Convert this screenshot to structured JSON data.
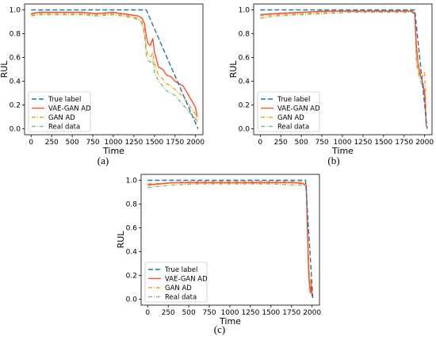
{
  "chart_data": [
    {
      "type": "line",
      "caption": "(a)",
      "xlabel": "Time",
      "ylabel": "RUL",
      "xlim": [
        -80,
        2090
      ],
      "ylim": [
        -0.05,
        1.05
      ],
      "xticks": [
        0,
        250,
        500,
        750,
        1000,
        1250,
        1500,
        1750,
        2000
      ],
      "yticks": [
        0.0,
        0.2,
        0.4,
        0.6,
        0.8,
        1.0
      ],
      "legend_position": "lower-left",
      "series": [
        {
          "name": "True label",
          "color": "#1f77b4",
          "dash": "6,3",
          "x": [
            0,
            1400,
            2030
          ],
          "y": [
            1.0,
            1.0,
            0.0
          ]
        },
        {
          "name": "VAE-GAN AD",
          "color": "#ff4d2e",
          "dash": "",
          "x": [
            0,
            100,
            200,
            400,
            600,
            800,
            1000,
            1200,
            1300,
            1350,
            1380,
            1400,
            1420,
            1450,
            1480,
            1500,
            1550,
            1600,
            1650,
            1700,
            1750,
            1800,
            1850,
            1900,
            1950,
            2000,
            2020
          ],
          "y": [
            0.97,
            0.98,
            0.98,
            0.98,
            0.98,
            0.97,
            0.98,
            0.96,
            0.95,
            0.93,
            0.88,
            0.78,
            0.72,
            0.7,
            0.76,
            0.65,
            0.52,
            0.5,
            0.45,
            0.44,
            0.4,
            0.38,
            0.36,
            0.3,
            0.24,
            0.18,
            0.1
          ]
        },
        {
          "name": "GAN AD",
          "color": "#ff9f1c",
          "dash": "5,2,1,2",
          "x": [
            0,
            100,
            200,
            400,
            600,
            800,
            1000,
            1200,
            1300,
            1350,
            1380,
            1400,
            1420,
            1450,
            1480,
            1500,
            1550,
            1600,
            1650,
            1700,
            1750,
            1800,
            1850,
            1900,
            1950,
            2000,
            2020
          ],
          "y": [
            0.96,
            0.97,
            0.97,
            0.97,
            0.97,
            0.96,
            0.97,
            0.95,
            0.93,
            0.9,
            0.82,
            0.68,
            0.62,
            0.6,
            0.64,
            0.55,
            0.45,
            0.42,
            0.38,
            0.36,
            0.33,
            0.3,
            0.27,
            0.22,
            0.17,
            0.12,
            0.06
          ]
        },
        {
          "name": "Real data",
          "color": "#7fbf7f",
          "dash": "5,2,1,2",
          "x": [
            0,
            100,
            200,
            400,
            600,
            800,
            1000,
            1200,
            1300,
            1350,
            1380,
            1400,
            1420,
            1450,
            1480,
            1500,
            1550,
            1600,
            1650,
            1700,
            1750,
            1800,
            1850,
            1900,
            1950,
            2000,
            2020
          ],
          "y": [
            0.95,
            0.96,
            0.96,
            0.96,
            0.96,
            0.95,
            0.96,
            0.94,
            0.92,
            0.88,
            0.78,
            0.62,
            0.58,
            0.56,
            0.58,
            0.48,
            0.4,
            0.36,
            0.32,
            0.3,
            0.28,
            0.24,
            0.2,
            0.16,
            0.12,
            0.08,
            0.04
          ]
        }
      ]
    },
    {
      "type": "line",
      "caption": "(b)",
      "xlabel": "Time",
      "ylabel": "RUL",
      "xlim": [
        -80,
        2090
      ],
      "ylim": [
        -0.05,
        1.05
      ],
      "xticks": [
        0,
        250,
        500,
        750,
        1000,
        1250,
        1500,
        1750,
        2000
      ],
      "yticks": [
        0.0,
        0.2,
        0.4,
        0.6,
        0.8,
        1.0
      ],
      "legend_position": "lower-left",
      "series": [
        {
          "name": "True label",
          "color": "#1f77b4",
          "dash": "6,3",
          "x": [
            0,
            1880,
            2030
          ],
          "y": [
            1.0,
            1.0,
            0.0
          ]
        },
        {
          "name": "VAE-GAN AD",
          "color": "#ff4d2e",
          "dash": "",
          "x": [
            0,
            200,
            500,
            800,
            1100,
            1400,
            1700,
            1850,
            1880,
            1900,
            1920,
            1950,
            1980,
            2000,
            2020
          ],
          "y": [
            0.96,
            0.97,
            0.98,
            0.99,
            0.99,
            0.99,
            0.99,
            0.99,
            0.97,
            0.7,
            0.55,
            0.45,
            0.38,
            0.3,
            0.02
          ]
        },
        {
          "name": "GAN AD",
          "color": "#ff9f1c",
          "dash": "5,2,1,2",
          "x": [
            0,
            200,
            500,
            800,
            1100,
            1400,
            1700,
            1850,
            1880,
            1900,
            1920,
            1950,
            1980,
            2000,
            2020
          ],
          "y": [
            0.95,
            0.96,
            0.97,
            0.98,
            0.99,
            0.99,
            0.99,
            0.99,
            0.96,
            0.6,
            0.5,
            0.42,
            0.45,
            0.48,
            0.1
          ]
        },
        {
          "name": "Real data",
          "color": "#7fbf7f",
          "dash": "5,2,1,2",
          "x": [
            0,
            200,
            500,
            800,
            1100,
            1400,
            1700,
            1850,
            1880,
            1900,
            1920,
            1950,
            1980,
            2000,
            2020
          ],
          "y": [
            0.93,
            0.95,
            0.96,
            0.97,
            0.98,
            0.98,
            0.98,
            0.98,
            0.95,
            0.55,
            0.48,
            0.4,
            0.35,
            0.28,
            0.05
          ]
        }
      ]
    },
    {
      "type": "line",
      "caption": "(c)",
      "xlabel": "Time",
      "ylabel": "RUL",
      "xlim": [
        -80,
        2090
      ],
      "ylim": [
        -0.05,
        1.05
      ],
      "xticks": [
        0,
        250,
        500,
        750,
        1000,
        1250,
        1500,
        1750,
        2000
      ],
      "yticks": [
        0.0,
        0.2,
        0.4,
        0.6,
        0.8,
        1.0
      ],
      "legend_position": "lower-left",
      "series": [
        {
          "name": "True label",
          "color": "#1f77b4",
          "dash": "6,3",
          "x": [
            0,
            1920,
            2010
          ],
          "y": [
            1.0,
            1.0,
            0.0
          ]
        },
        {
          "name": "VAE-GAN AD",
          "color": "#ff4d2e",
          "dash": "",
          "x": [
            0,
            300,
            600,
            900,
            1200,
            1500,
            1800,
            1900,
            1930,
            1950,
            1960,
            1970,
            1980,
            1990,
            2000
          ],
          "y": [
            0.96,
            0.98,
            0.98,
            0.98,
            0.98,
            0.98,
            0.98,
            0.97,
            0.95,
            0.4,
            0.2,
            0.1,
            0.05,
            0.12,
            0.02
          ]
        },
        {
          "name": "GAN AD",
          "color": "#ff9f1c",
          "dash": "5,2,1,2",
          "x": [
            0,
            300,
            600,
            900,
            1200,
            1500,
            1800,
            1900,
            1930,
            1950,
            1960,
            1970,
            1980,
            1990,
            2000
          ],
          "y": [
            0.97,
            0.98,
            0.99,
            0.99,
            0.99,
            0.99,
            0.99,
            0.98,
            0.97,
            0.5,
            0.3,
            0.18,
            0.12,
            0.18,
            0.05
          ]
        },
        {
          "name": "Real data",
          "color": "#7fbf7f",
          "dash": "5,2,1,2",
          "x": [
            0,
            300,
            600,
            900,
            1200,
            1500,
            1800,
            1900,
            1930,
            1950,
            1960,
            1970,
            1980,
            1990,
            2000
          ],
          "y": [
            0.94,
            0.96,
            0.97,
            0.97,
            0.97,
            0.97,
            0.96,
            0.96,
            0.94,
            0.45,
            0.25,
            0.12,
            0.08,
            0.15,
            0.03
          ]
        }
      ]
    }
  ]
}
